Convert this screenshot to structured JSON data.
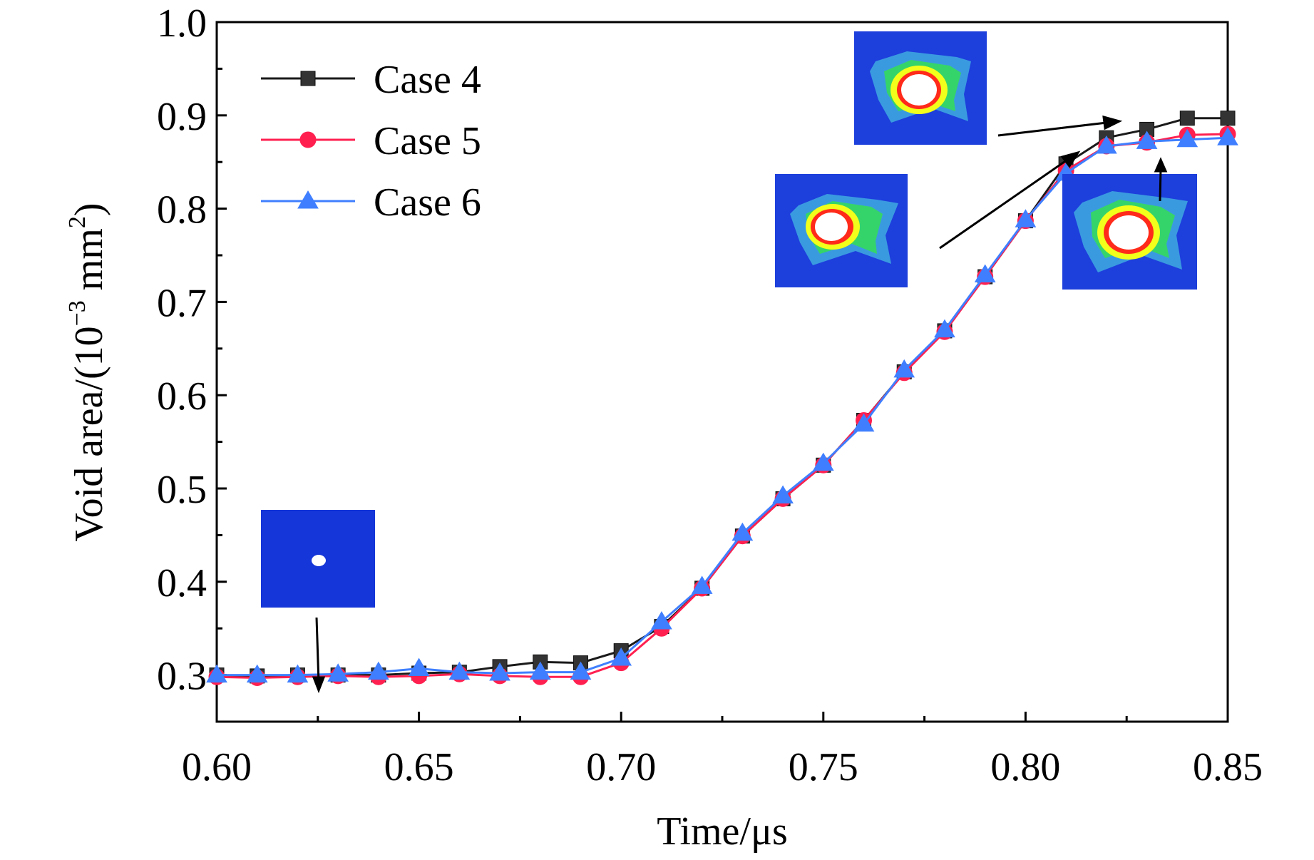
{
  "chart_data": {
    "type": "line",
    "xlabel": "Time/μs",
    "ylabel_text": "Void area/(10",
    "ylabel_exp": "−3",
    "ylabel_unit": " mm",
    "ylabel_unit_exp": "2",
    "ylabel_close": ")",
    "xlim": [
      0.6,
      0.85
    ],
    "ylim": [
      0.25,
      1.0
    ],
    "xticks": [
      "0.60",
      "0.65",
      "0.70",
      "0.75",
      "0.80",
      "0.85"
    ],
    "yticks": [
      "0.3",
      "0.4",
      "0.5",
      "0.6",
      "0.7",
      "0.8",
      "0.9",
      "1.0"
    ],
    "x": [
      0.6,
      0.61,
      0.62,
      0.63,
      0.64,
      0.65,
      0.66,
      0.67,
      0.68,
      0.69,
      0.7,
      0.71,
      0.72,
      0.73,
      0.74,
      0.75,
      0.76,
      0.77,
      0.78,
      0.79,
      0.8,
      0.81,
      0.82,
      0.83,
      0.84,
      0.85
    ],
    "series": [
      {
        "name": "Case 4",
        "color": "#1a1a1a",
        "marker": "square",
        "values": [
          0.3,
          0.299,
          0.3,
          0.3,
          0.3,
          0.302,
          0.303,
          0.309,
          0.314,
          0.313,
          0.326,
          0.352,
          0.393,
          0.449,
          0.489,
          0.525,
          0.573,
          0.625,
          0.669,
          0.727,
          0.787,
          0.848,
          0.876,
          0.885,
          0.897,
          0.897
        ]
      },
      {
        "name": "Case 5",
        "color": "#ff2050",
        "marker": "circle",
        "values": [
          0.298,
          0.297,
          0.298,
          0.299,
          0.298,
          0.299,
          0.301,
          0.299,
          0.298,
          0.298,
          0.313,
          0.35,
          0.393,
          0.449,
          0.489,
          0.525,
          0.573,
          0.624,
          0.668,
          0.727,
          0.787,
          0.841,
          0.867,
          0.871,
          0.879,
          0.88
        ]
      },
      {
        "name": "Case 6",
        "color": "#3f7fff",
        "marker": "triangle",
        "values": [
          0.3,
          0.3,
          0.3,
          0.301,
          0.303,
          0.307,
          0.303,
          0.302,
          0.303,
          0.303,
          0.318,
          0.357,
          0.395,
          0.452,
          0.492,
          0.527,
          0.569,
          0.627,
          0.67,
          0.729,
          0.788,
          0.838,
          0.867,
          0.872,
          0.874,
          0.876
        ]
      }
    ],
    "legend_position": "top-left",
    "grid": false
  }
}
